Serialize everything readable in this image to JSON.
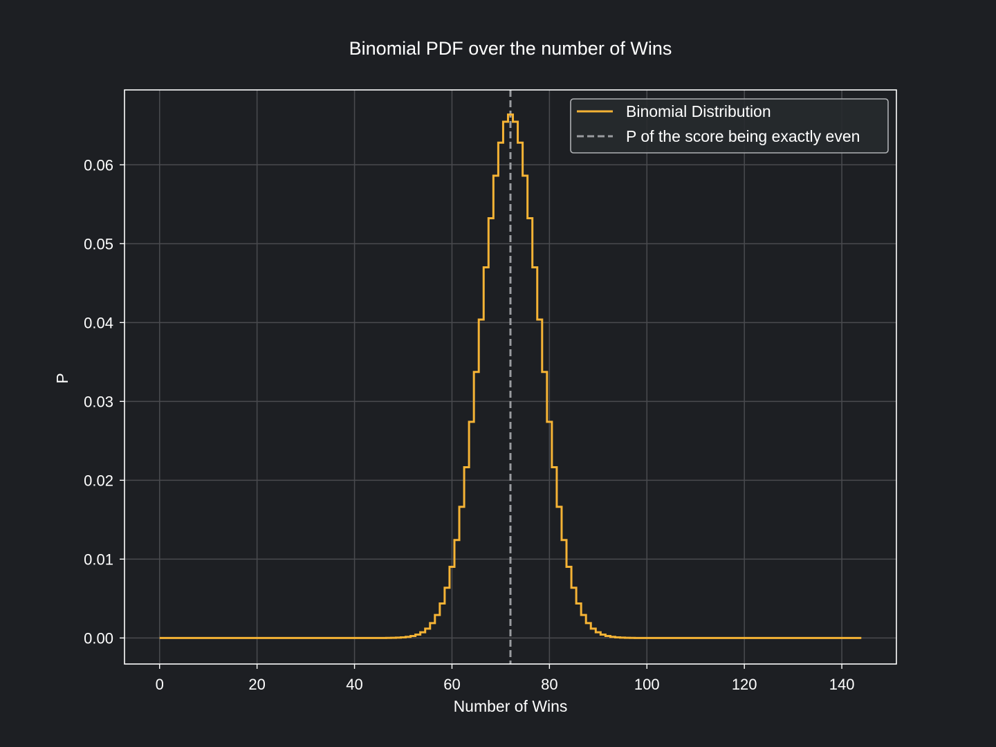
{
  "chart_data": {
    "type": "line",
    "title": "Binomial PDF over the number of Wins",
    "xlabel": "Number of Wins",
    "ylabel": "P",
    "xlim": [
      -7.2,
      151.2
    ],
    "ylim": [
      -0.0033,
      0.0695
    ],
    "xticks": [
      0,
      20,
      40,
      60,
      80,
      100,
      120,
      140
    ],
    "yticks": [
      0.0,
      0.01,
      0.02,
      0.03,
      0.04,
      0.05,
      0.06
    ],
    "ytick_labels": [
      "0.00",
      "0.01",
      "0.02",
      "0.03",
      "0.04",
      "0.05",
      "0.06"
    ],
    "grid": true,
    "legend_position": "top-right",
    "series": [
      {
        "name": "Binomial Distribution",
        "type": "step",
        "color": "#f5b335",
        "distribution": {
          "n": 144,
          "p": 0.5
        },
        "x_range": [
          0,
          144
        ]
      }
    ],
    "vlines": [
      {
        "name": "P of the score being exactly even",
        "x": 72,
        "color": "#9a9ca0",
        "style": "dashed"
      }
    ],
    "colors": {
      "background": "#1d1f23",
      "axes_face": "#1d1f23",
      "grid": "#4a4b4f",
      "text": "#ffffff",
      "spine": "#ffffff",
      "legend_face": "#272a2e",
      "legend_edge": "#b0b2b5"
    }
  }
}
